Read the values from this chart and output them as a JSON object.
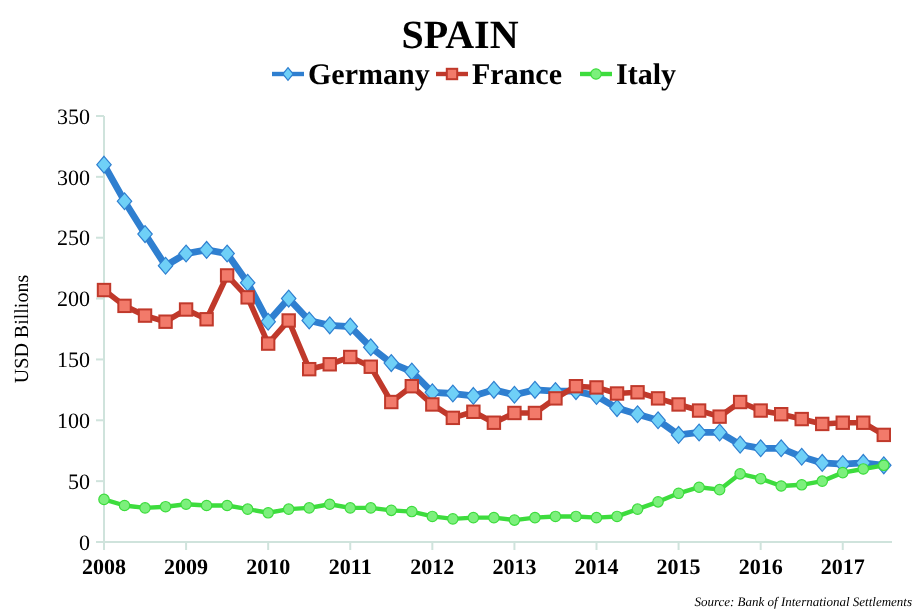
{
  "chart_data": {
    "type": "line",
    "title": "SPAIN",
    "ylabel": "USD Billions",
    "x": [
      2008,
      2008.25,
      2008.5,
      2008.75,
      2009,
      2009.25,
      2009.5,
      2009.75,
      2010,
      2010.25,
      2010.5,
      2010.75,
      2011,
      2011.25,
      2011.5,
      2011.75,
      2012,
      2012.25,
      2012.5,
      2012.75,
      2013,
      2013.25,
      2013.5,
      2013.75,
      2014,
      2014.25,
      2014.5,
      2014.75,
      2015,
      2015.25,
      2015.5,
      2015.75,
      2016,
      2016.25,
      2016.5,
      2016.75,
      2017,
      2017.25,
      2017.5
    ],
    "xlim": [
      2008,
      2017.6
    ],
    "xticks": [
      2008,
      2009,
      2010,
      2011,
      2012,
      2013,
      2014,
      2015,
      2016,
      2017
    ],
    "ylim": [
      0,
      350
    ],
    "yticks": [
      0,
      50,
      100,
      150,
      200,
      250,
      300,
      350
    ],
    "grid": false,
    "legend": "top",
    "annotations": [
      "Source: Bank of International Settlements"
    ],
    "series": [
      {
        "name": "Germany",
        "color": "#2f7fd0",
        "marker": "diamond",
        "values": [
          310,
          280,
          253,
          227,
          237,
          240,
          237,
          213,
          181,
          200,
          182,
          178,
          177,
          160,
          147,
          140,
          123,
          122,
          120,
          125,
          121,
          125,
          124,
          124,
          120,
          110,
          105,
          100,
          88,
          90,
          90,
          80,
          77,
          77,
          70,
          65,
          64,
          65,
          63
        ]
      },
      {
        "name": "France",
        "color": "#c0392b",
        "marker": "square",
        "values": [
          207,
          194,
          186,
          181,
          191,
          183,
          219,
          201,
          163,
          182,
          142,
          146,
          152,
          144,
          115,
          128,
          113,
          102,
          107,
          98,
          106,
          106,
          118,
          128,
          127,
          122,
          123,
          118,
          113,
          108,
          103,
          115,
          108,
          105,
          101,
          97,
          98,
          98,
          88
        ]
      },
      {
        "name": "Italy",
        "color": "#3ddc3d",
        "marker": "circle",
        "values": [
          35,
          30,
          28,
          29,
          31,
          30,
          30,
          27,
          24,
          27,
          28,
          31,
          28,
          28,
          26,
          25,
          21,
          19,
          20,
          20,
          18,
          20,
          21,
          21,
          20,
          21,
          27,
          33,
          40,
          45,
          43,
          56,
          52,
          46,
          47,
          50,
          57,
          60,
          63
        ]
      }
    ]
  }
}
